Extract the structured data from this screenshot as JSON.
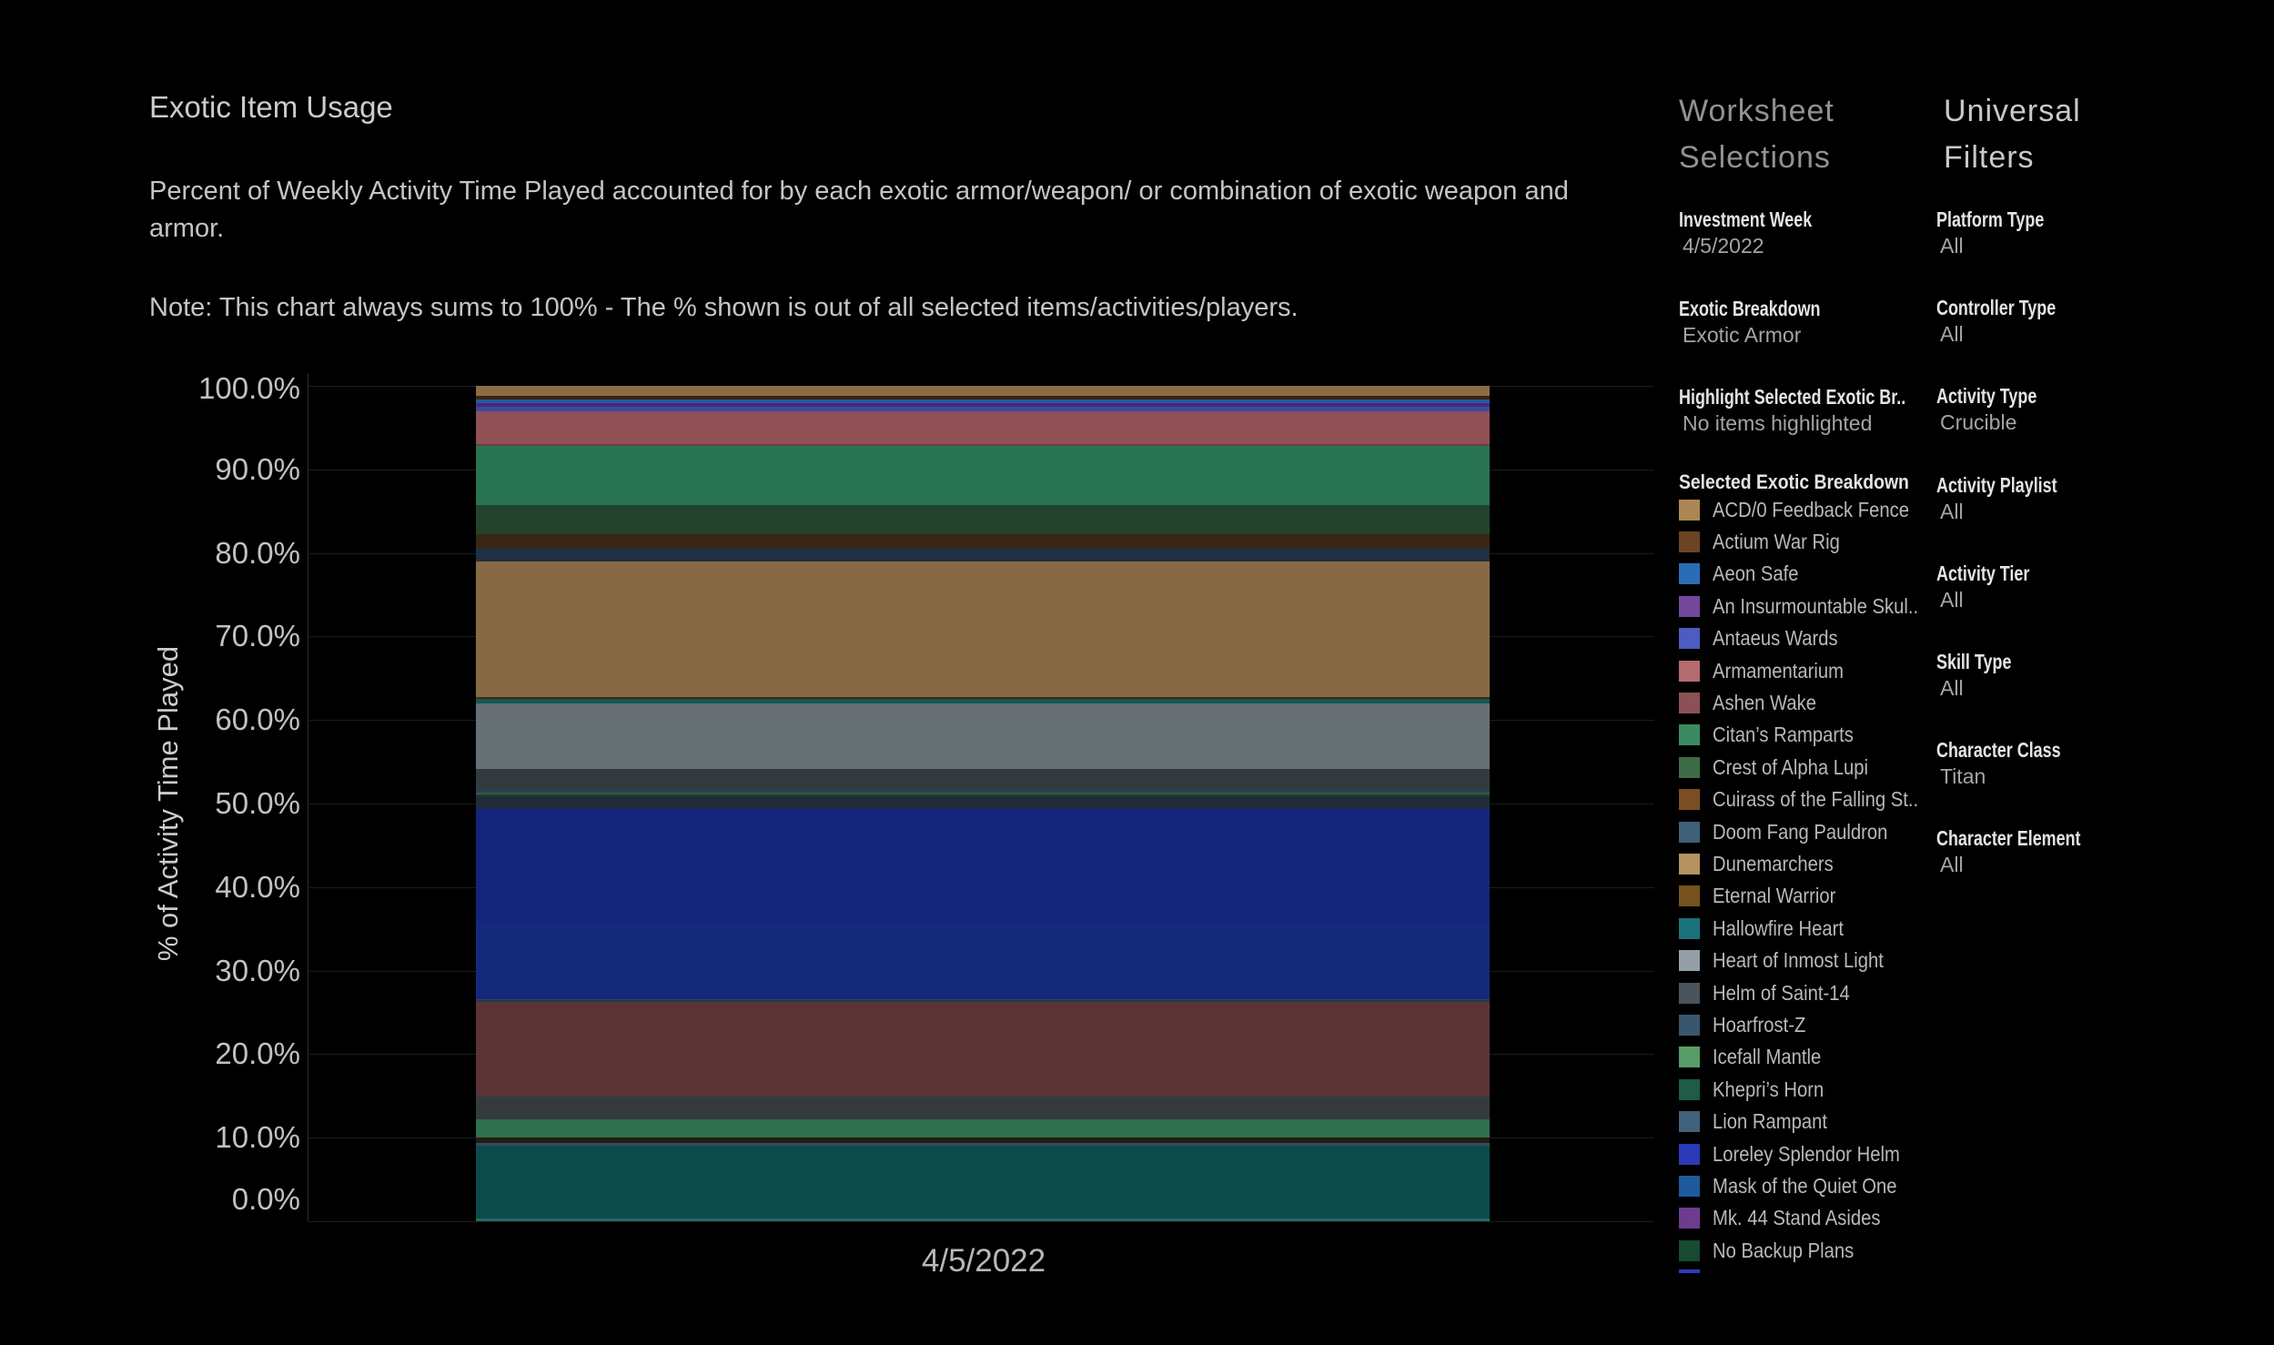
{
  "title": "Exotic Item Usage",
  "description": "Percent of Weekly Activity Time Played accounted for by each exotic armor/weapon/ or combination of exotic weapon and armor.",
  "note": "Note: This chart always sums to 100% - The % shown is out of all selected items/activities/players.",
  "chart_data": {
    "type": "bar",
    "stacked": true,
    "categories": [
      "4/5/2022"
    ],
    "ylabel": "% of Activity Time Played",
    "ylim": [
      0,
      100
    ],
    "ytick_labels": [
      "0.0%",
      "10.0%",
      "20.0%",
      "30.0%",
      "40.0%",
      "50.0%",
      "60.0%",
      "70.0%",
      "80.0%",
      "90.0%",
      "100.0%"
    ],
    "grid": true,
    "segments_bottom_to_top": [
      {
        "name": null,
        "color": "#0d4b4b",
        "value": 9.0
      },
      {
        "name": null,
        "color": "#2d4d6e",
        "value": 0.35
      },
      {
        "name": null,
        "color": "#271a0e",
        "value": 0.7
      },
      {
        "name": null,
        "color": "#2f7050",
        "value": 2.1
      },
      {
        "name": null,
        "color": "#343b3f",
        "value": 2.8
      },
      {
        "name": null,
        "color": "#5c3438",
        "value": 11.3
      },
      {
        "name": "No Backup Plans",
        "color": "#14452e",
        "value": 0.17
      },
      {
        "name": "Mk. 44 Stand Asides",
        "color": "#53307a",
        "value": 0.17
      },
      {
        "name": "Mask of the Quiet One",
        "color": "#13297a",
        "value": 9.15
      },
      {
        "name": "Loreley Splendor Helm",
        "color": "#13257b",
        "value": 13.65
      },
      {
        "name": "Lion Rampant",
        "color": "#202c3a",
        "value": 1.5
      },
      {
        "name": "Khepri’s Horn",
        "color": "#1d3f2e",
        "value": 0.2
      },
      {
        "name": "Icefall Mantle",
        "color": "#2f5e42",
        "value": 0.25
      },
      {
        "name": "Hoarfrost-Z",
        "color": "#2c4050",
        "value": 0.25
      },
      {
        "name": "Helm of Saint-14",
        "color": "#333b40",
        "value": 2.55
      },
      {
        "name": "Heart of Inmost Light",
        "color": "#667075",
        "value": 7.8
      },
      {
        "name": "Hallowfire Heart",
        "color": "#175752",
        "value": 0.6
      },
      {
        "name": "Eternal Warrior",
        "color": "#3a2a12",
        "value": 0.2
      },
      {
        "name": "Dunemarchers",
        "color": "#876a45",
        "value": 16.2
      },
      {
        "name": "Doom Fang Pauldron",
        "color": "#203040",
        "value": 1.65
      },
      {
        "name": "Cuirass of the Falling Star",
        "color": "#3c2512",
        "value": 1.65
      },
      {
        "name": "Crest of Alpha Lupi",
        "color": "#24432c",
        "value": 3.45
      },
      {
        "name": "Citan’s Ramparts",
        "color": "#287352",
        "value": 7.1
      },
      {
        "name": "Ashen Wake",
        "color": "#6b3d42",
        "value": 0.2
      },
      {
        "name": "Armamentarium",
        "color": "#8f5056",
        "value": 3.9
      },
      {
        "name": "Antaeus Wards",
        "color": "#3a4aa0",
        "value": 0.55
      },
      {
        "name": "An Insurmountable Skullfort",
        "color": "#4b2a70",
        "value": 0.5
      },
      {
        "name": "Aeon Safe",
        "color": "#2458a8",
        "value": 0.45
      },
      {
        "name": "Actium War Rig",
        "color": "#3a2414",
        "value": 0.45
      },
      {
        "name": "ACD/0 Feedback Fence",
        "color": "#8b6d40",
        "value": 1.15
      }
    ]
  },
  "worksheet_selections": {
    "header": "Worksheet Selections",
    "groups": [
      {
        "label": "Investment Week",
        "value": "4/5/2022"
      },
      {
        "label": "Exotic Breakdown",
        "value": "Exotic Armor"
      },
      {
        "label": "Highlight Selected Exotic Br..",
        "value": "No items highlighted"
      }
    ],
    "legend_title": "Selected Exotic Breakdown",
    "legend": [
      {
        "name": "ACD/0 Feedback Fence",
        "color": "#ab8753"
      },
      {
        "name": "Actium War Rig",
        "color": "#6b4423"
      },
      {
        "name": "Aeon Safe",
        "color": "#2a6cb5"
      },
      {
        "name": "An Insurmountable Skul..",
        "color": "#73479b"
      },
      {
        "name": "Antaeus Wards",
        "color": "#4c5cc0"
      },
      {
        "name": "Armamentarium",
        "color": "#b56b70"
      },
      {
        "name": "Ashen Wake",
        "color": "#8c5156"
      },
      {
        "name": "Citan’s Ramparts",
        "color": "#3b8a61"
      },
      {
        "name": "Crest of Alpha Lupi",
        "color": "#3c6b45"
      },
      {
        "name": "Cuirass of the Falling St..",
        "color": "#7c4c22"
      },
      {
        "name": "Doom Fang Pauldron",
        "color": "#3e6077"
      },
      {
        "name": "Dunemarchers",
        "color": "#b39260"
      },
      {
        "name": "Eternal Warrior",
        "color": "#77521f"
      },
      {
        "name": "Hallowfire Heart",
        "color": "#1b7179"
      },
      {
        "name": "Heart of Inmost Light",
        "color": "#93a0a7"
      },
      {
        "name": "Helm of Saint-14",
        "color": "#4a545c"
      },
      {
        "name": "Hoarfrost-Z",
        "color": "#3a566e"
      },
      {
        "name": "Icefall Mantle",
        "color": "#579d68"
      },
      {
        "name": "Khepri’s Horn",
        "color": "#1d5c45"
      },
      {
        "name": "Lion Rampant",
        "color": "#42617a"
      },
      {
        "name": "Loreley Splendor Helm",
        "color": "#2a3ab8"
      },
      {
        "name": "Mask of the Quiet One",
        "color": "#1d5a9e"
      },
      {
        "name": "Mk. 44 Stand Asides",
        "color": "#6e3b8f"
      },
      {
        "name": "No Backup Plans",
        "color": "#174a31"
      }
    ],
    "legend_overflow_color": "#2d3cbd"
  },
  "universal_filters": {
    "header": "Universal Filters",
    "groups": [
      {
        "label": "Platform Type",
        "value": "All"
      },
      {
        "label": "Controller Type",
        "value": "All"
      },
      {
        "label": "Activity Type",
        "value": "Crucible"
      },
      {
        "label": "Activity Playlist",
        "value": "All"
      },
      {
        "label": "Activity Tier",
        "value": "All"
      },
      {
        "label": "Skill Type",
        "value": "All"
      },
      {
        "label": "Character Class",
        "value": "Titan"
      },
      {
        "label": "Character Element",
        "value": "All"
      }
    ]
  }
}
